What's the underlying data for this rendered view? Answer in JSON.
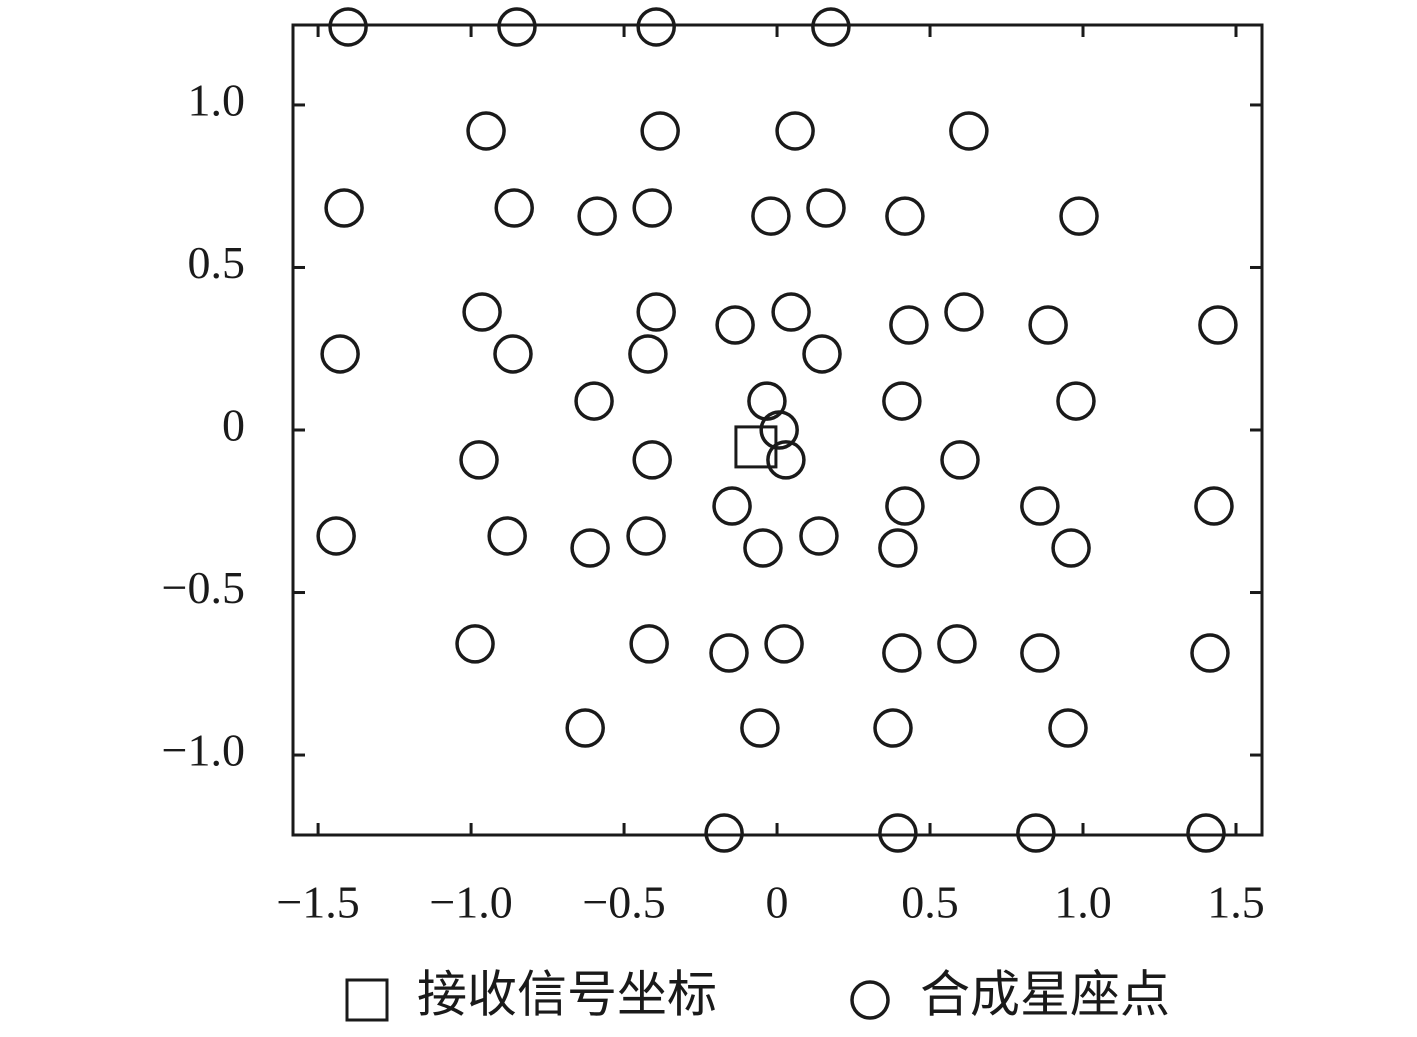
{
  "chart_data": {
    "type": "scatter",
    "series": [
      {
        "name": "接收信号坐标",
        "marker": "square",
        "color": "#1a1a1a",
        "x": [
          -0.069
        ],
        "y": [
          -0.052
        ]
      },
      {
        "name": "合成星座点",
        "marker": "circle",
        "color": "#1a1a1a",
        "x": [
          -1.402,
          -0.85,
          -0.395,
          0.176,
          -0.951,
          -0.382,
          0.059,
          0.627,
          -1.415,
          -0.859,
          -0.408,
          0.16,
          -0.588,
          -0.02,
          0.418,
          0.987,
          -0.964,
          -0.395,
          0.046,
          0.611,
          -0.137,
          0.431,
          0.886,
          1.441,
          -1.428,
          -0.863,
          -0.422,
          0.147,
          -0.598,
          -0.033,
          0.408,
          0.977,
          0.007,
          -0.974,
          -0.408,
          0.029,
          0.598,
          -0.147,
          0.418,
          0.859,
          1.428,
          -1.441,
          -0.882,
          -0.428,
          0.137,
          -0.611,
          -0.046,
          0.395,
          0.961,
          -0.987,
          -0.418,
          0.023,
          0.588,
          -0.157,
          0.408,
          0.859,
          1.415,
          -0.627,
          -0.056,
          0.379,
          0.951,
          -0.173,
          0.395,
          0.846,
          1.402
        ],
        "y": [
          1.24,
          1.24,
          1.24,
          1.24,
          0.92,
          0.92,
          0.92,
          0.92,
          0.683,
          0.683,
          0.683,
          0.683,
          0.658,
          0.658,
          0.658,
          0.658,
          0.363,
          0.363,
          0.363,
          0.363,
          0.323,
          0.323,
          0.323,
          0.323,
          0.234,
          0.234,
          0.234,
          0.234,
          0.089,
          0.089,
          0.089,
          0.089,
          0,
          -0.092,
          -0.092,
          -0.092,
          -0.092,
          -0.234,
          -0.234,
          -0.234,
          -0.234,
          -0.326,
          -0.326,
          -0.326,
          -0.326,
          -0.363,
          -0.363,
          -0.363,
          -0.363,
          -0.658,
          -0.658,
          -0.658,
          -0.658,
          -0.686,
          -0.686,
          -0.686,
          -0.686,
          -0.917,
          -0.917,
          -0.917,
          -0.917,
          -1.24,
          -1.24,
          -1.24,
          -1.24
        ]
      }
    ],
    "xlim": [
      -1.582,
      1.585
    ],
    "ylim": [
      -1.246,
      1.246
    ],
    "xticks": [
      {
        "value": -1.5,
        "label": "−1.5"
      },
      {
        "value": -1,
        "label": "−1.0"
      },
      {
        "value": -0.5,
        "label": "−0.5"
      },
      0,
      0.5,
      {
        "value": 1,
        "label": "1.0"
      },
      1.5
    ],
    "yticks": [
      {
        "value": -1,
        "label": "−1.0"
      },
      {
        "value": -0.5,
        "label": "−0.5"
      },
      0,
      0.5,
      {
        "value": 1,
        "label": "1.0"
      }
    ],
    "legend": "bottom",
    "grid": false
  }
}
